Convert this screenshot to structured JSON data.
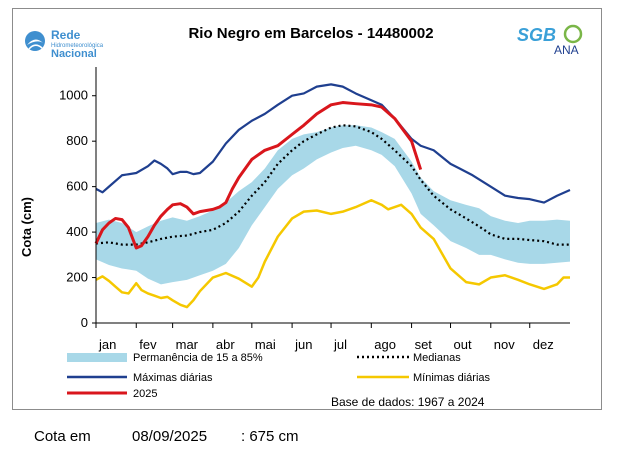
{
  "logos": {
    "left_line1": "Rede",
    "left_line2": "Hidrometeorológica",
    "left_line3": "Nacional",
    "right_main": "SGB",
    "right_sub": "ANA"
  },
  "status": {
    "label": "Cota em",
    "date": "08/09/2025",
    "value": ": 675 cm"
  },
  "colors": {
    "band": "#a8d8e8",
    "max": "#1f3f8f",
    "min": "#f5c800",
    "current": "#d9161c",
    "median": "#000000"
  },
  "chart_data": {
    "type": "line",
    "title": "Rio Negro em Barcelos - 14480002",
    "xlabel": "",
    "ylabel": "Cota (cm)",
    "ylim": [
      0,
      1100
    ],
    "yticks": [
      0,
      200,
      400,
      600,
      800,
      1000
    ],
    "xlim": [
      0,
      365
    ],
    "months": [
      {
        "label": "jan",
        "day": 0
      },
      {
        "label": "fev",
        "day": 31
      },
      {
        "label": "mar",
        "day": 59
      },
      {
        "label": "abr",
        "day": 90
      },
      {
        "label": "mai",
        "day": 120
      },
      {
        "label": "jun",
        "day": 151
      },
      {
        "label": "jul",
        "day": 181
      },
      {
        "label": "ago",
        "day": 212
      },
      {
        "label": "set",
        "day": 243
      },
      {
        "label": "out",
        "day": 273
      },
      {
        "label": "nov",
        "day": 304
      },
      {
        "label": "dez",
        "day": 334
      }
    ],
    "grid": false,
    "source_note": "Base de dados: 1967 a 2024",
    "legend": [
      {
        "key": "band",
        "label": "Permanência de 15 a 85%"
      },
      {
        "key": "median",
        "label": "Medianas"
      },
      {
        "key": "max",
        "label": "Máximas diárias"
      },
      {
        "key": "min",
        "label": "Mínimas diárias"
      },
      {
        "key": "current",
        "label": "2025"
      }
    ],
    "band": {
      "x": [
        0,
        10,
        20,
        31,
        40,
        50,
        59,
        70,
        80,
        90,
        100,
        110,
        120,
        130,
        140,
        151,
        160,
        170,
        181,
        190,
        200,
        212,
        220,
        230,
        243,
        250,
        260,
        273,
        285,
        295,
        304,
        315,
        325,
        334,
        345,
        355,
        365
      ],
      "upper": [
        440,
        455,
        440,
        400,
        425,
        450,
        465,
        450,
        470,
        495,
        530,
        580,
        620,
        680,
        760,
        810,
        830,
        840,
        860,
        870,
        870,
        860,
        840,
        810,
        710,
        640,
        580,
        540,
        520,
        505,
        470,
        450,
        440,
        450,
        450,
        455,
        450
      ],
      "lower": [
        280,
        255,
        240,
        230,
        195,
        170,
        180,
        190,
        210,
        230,
        260,
        330,
        430,
        510,
        590,
        650,
        680,
        720,
        750,
        770,
        780,
        760,
        740,
        690,
        570,
        480,
        430,
        360,
        330,
        300,
        300,
        280,
        265,
        260,
        260,
        265,
        270
      ]
    },
    "series": [
      {
        "key": "max",
        "x": [
          0,
          5,
          10,
          20,
          31,
          40,
          45,
          50,
          55,
          59,
          65,
          70,
          75,
          80,
          90,
          100,
          110,
          120,
          130,
          140,
          151,
          160,
          170,
          181,
          190,
          200,
          212,
          220,
          230,
          243,
          250,
          260,
          273,
          280,
          290,
          304,
          315,
          325,
          334,
          345,
          355,
          365
        ],
        "y": [
          590,
          575,
          600,
          650,
          660,
          690,
          715,
          700,
          680,
          655,
          665,
          665,
          655,
          660,
          710,
          790,
          850,
          890,
          920,
          960,
          1000,
          1010,
          1040,
          1050,
          1040,
          1010,
          980,
          960,
          900,
          810,
          780,
          760,
          700,
          680,
          650,
          600,
          560,
          550,
          545,
          530,
          560,
          585
        ]
      },
      {
        "key": "median",
        "x": [
          0,
          10,
          20,
          31,
          40,
          50,
          59,
          70,
          80,
          90,
          100,
          110,
          120,
          130,
          140,
          151,
          160,
          170,
          181,
          190,
          200,
          212,
          220,
          230,
          243,
          250,
          260,
          273,
          285,
          295,
          304,
          315,
          325,
          334,
          345,
          355,
          365
        ],
        "y": [
          350,
          355,
          345,
          345,
          355,
          370,
          380,
          385,
          400,
          410,
          440,
          490,
          560,
          620,
          700,
          760,
          800,
          830,
          860,
          870,
          865,
          840,
          810,
          760,
          690,
          630,
          560,
          500,
          460,
          425,
          390,
          370,
          370,
          365,
          360,
          345,
          345
        ]
      },
      {
        "key": "min",
        "x": [
          0,
          5,
          10,
          15,
          20,
          25,
          31,
          35,
          40,
          45,
          50,
          55,
          59,
          65,
          70,
          75,
          80,
          90,
          100,
          110,
          120,
          125,
          130,
          140,
          151,
          160,
          170,
          181,
          190,
          200,
          212,
          220,
          225,
          230,
          235,
          243,
          250,
          260,
          273,
          285,
          295,
          304,
          315,
          325,
          334,
          345,
          355,
          360,
          365
        ],
        "y": [
          190,
          205,
          185,
          160,
          135,
          130,
          175,
          145,
          130,
          120,
          110,
          115,
          100,
          80,
          70,
          100,
          140,
          200,
          220,
          195,
          160,
          200,
          270,
          380,
          460,
          490,
          495,
          480,
          490,
          510,
          540,
          520,
          500,
          510,
          520,
          480,
          420,
          370,
          240,
          180,
          170,
          200,
          210,
          190,
          170,
          150,
          170,
          200,
          200
        ]
      },
      {
        "key": "current",
        "x": [
          0,
          5,
          10,
          15,
          20,
          25,
          31,
          35,
          40,
          45,
          50,
          55,
          59,
          65,
          70,
          75,
          80,
          90,
          95,
          100,
          105,
          110,
          120,
          130,
          140,
          151,
          160,
          170,
          181,
          190,
          200,
          212,
          220,
          230,
          243,
          250
        ],
        "y": [
          350,
          410,
          440,
          460,
          455,
          420,
          330,
          340,
          380,
          430,
          470,
          500,
          520,
          525,
          510,
          480,
          490,
          500,
          510,
          530,
          590,
          640,
          720,
          760,
          780,
          830,
          870,
          920,
          960,
          970,
          965,
          960,
          950,
          900,
          800,
          675
        ]
      }
    ]
  }
}
